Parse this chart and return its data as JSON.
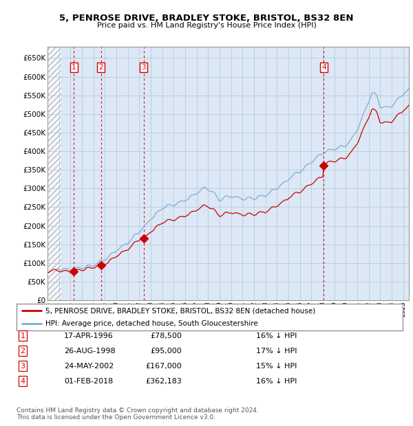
{
  "title1": "5, PENROSE DRIVE, BRADLEY STOKE, BRISTOL, BS32 8EN",
  "title2": "Price paid vs. HM Land Registry's House Price Index (HPI)",
  "ylim": [
    0,
    680000
  ],
  "yticks": [
    0,
    50000,
    100000,
    150000,
    200000,
    250000,
    300000,
    350000,
    400000,
    450000,
    500000,
    550000,
    600000,
    650000
  ],
  "ytick_labels": [
    "£0",
    "£50K",
    "£100K",
    "£150K",
    "£200K",
    "£250K",
    "£300K",
    "£350K",
    "£400K",
    "£450K",
    "£500K",
    "£550K",
    "£600K",
    "£650K"
  ],
  "transactions": [
    {
      "num": 1,
      "date": "17-APR-1996",
      "year": 1996.29,
      "price": 78500
    },
    {
      "num": 2,
      "date": "26-AUG-1998",
      "year": 1998.65,
      "price": 95000
    },
    {
      "num": 3,
      "date": "24-MAY-2002",
      "year": 2002.39,
      "price": 167000
    },
    {
      "num": 4,
      "date": "01-FEB-2018",
      "year": 2018.08,
      "price": 362183
    }
  ],
  "table_rows": [
    [
      "1",
      "17-APR-1996",
      "£78,500",
      "16% ↓ HPI"
    ],
    [
      "2",
      "26-AUG-1998",
      "£95,000",
      "17% ↓ HPI"
    ],
    [
      "3",
      "24-MAY-2002",
      "£167,000",
      "15% ↓ HPI"
    ],
    [
      "4",
      "01-FEB-2018",
      "£362,183",
      "16% ↓ HPI"
    ]
  ],
  "hpi_color": "#7bafd4",
  "price_color": "#cc0000",
  "dashed_color": "#cc0000",
  "box_color": "#cc0000",
  "background_color": "#dce8f5",
  "hatch_color": "#c8c8c8",
  "grid_color": "#b0c4d8",
  "footer": "Contains HM Land Registry data © Crown copyright and database right 2024.\nThis data is licensed under the Open Government Licence v3.0.",
  "legend_line1": "5, PENROSE DRIVE, BRADLEY STOKE, BRISTOL, BS32 8EN (detached house)",
  "legend_line2": "HPI: Average price, detached house, South Gloucestershire",
  "xmin": 1994.0,
  "xmax": 2025.5
}
